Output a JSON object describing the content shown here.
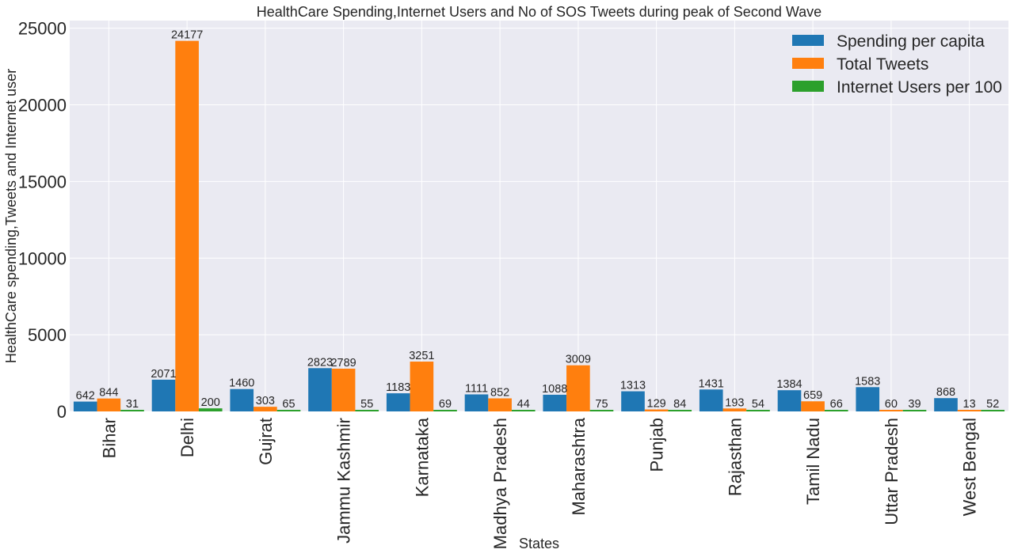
{
  "chart_data": {
    "type": "bar",
    "title": "HealthCare Spending,Internet Users and  No of SOS Tweets during peak of Second Wave",
    "xlabel": "States",
    "ylabel": "HealthCare spending,Tweets and Internet user",
    "ylim": [
      0,
      25500
    ],
    "yticks": [
      0,
      5000,
      10000,
      15000,
      20000,
      25000
    ],
    "grid": true,
    "legend_position": "top-right",
    "categories": [
      "Bihar",
      "Delhi",
      "Gujrat",
      "Jammu Kashmir",
      "Karnataka",
      "Madhya Pradesh",
      "Maharashtra",
      "Punjab",
      "Rajasthan",
      "Tamil Nadu",
      "Uttar Pradesh",
      "West Bengal"
    ],
    "series": [
      {
        "name": "Spending per capita",
        "color": "#1f77b4",
        "values": [
          642,
          2071,
          1460,
          2823,
          1183,
          1111,
          1088,
          1313,
          1431,
          1384,
          1583,
          868
        ]
      },
      {
        "name": "Total Tweets",
        "color": "#ff7f0e",
        "values": [
          844,
          24177,
          303,
          2789,
          3251,
          852,
          3009,
          129,
          193,
          659,
          60,
          13
        ]
      },
      {
        "name": "Internet Users per 100",
        "color": "#2ca02c",
        "values": [
          31,
          200,
          65,
          55,
          69,
          44,
          75,
          84,
          54,
          66,
          39,
          52
        ]
      }
    ]
  }
}
